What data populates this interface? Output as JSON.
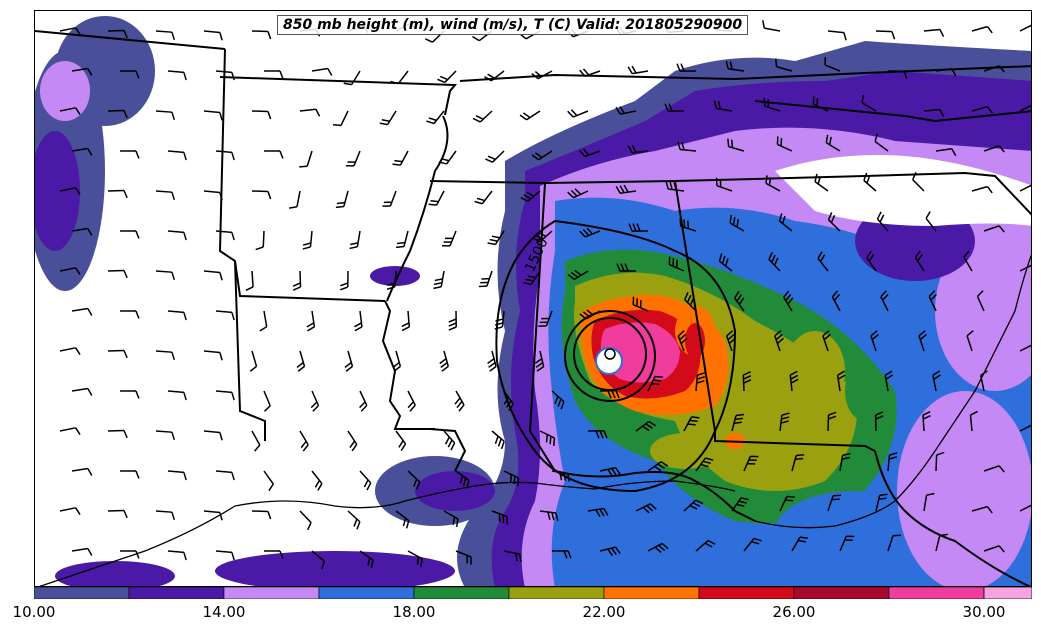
{
  "title": "850 mb height (m), wind (m/s), T (C) Valid: 201805290900",
  "contour_label": "1500",
  "colorbar": {
    "colors": [
      "#4a4f9a",
      "#4a1aa6",
      "#c489f5",
      "#2f6fdc",
      "#228b3a",
      "#9aa010",
      "#ff7200",
      "#d20a1a",
      "#a8082c",
      "#f03c9c",
      "#f7a3df"
    ],
    "tick_labels": [
      "10.00",
      "14.00",
      "18.00",
      "22.00",
      "26.00",
      "30.00"
    ]
  },
  "shading": {
    "purple_dark": "#4a1aa6",
    "slate": "#4a4f9a",
    "lavender": "#c489f5",
    "blue": "#2f6fdc",
    "green": "#228b3a",
    "olive": "#9aa010",
    "orange": "#ff7200",
    "red": "#d20a1a",
    "magenta": "#f03c9c"
  }
}
